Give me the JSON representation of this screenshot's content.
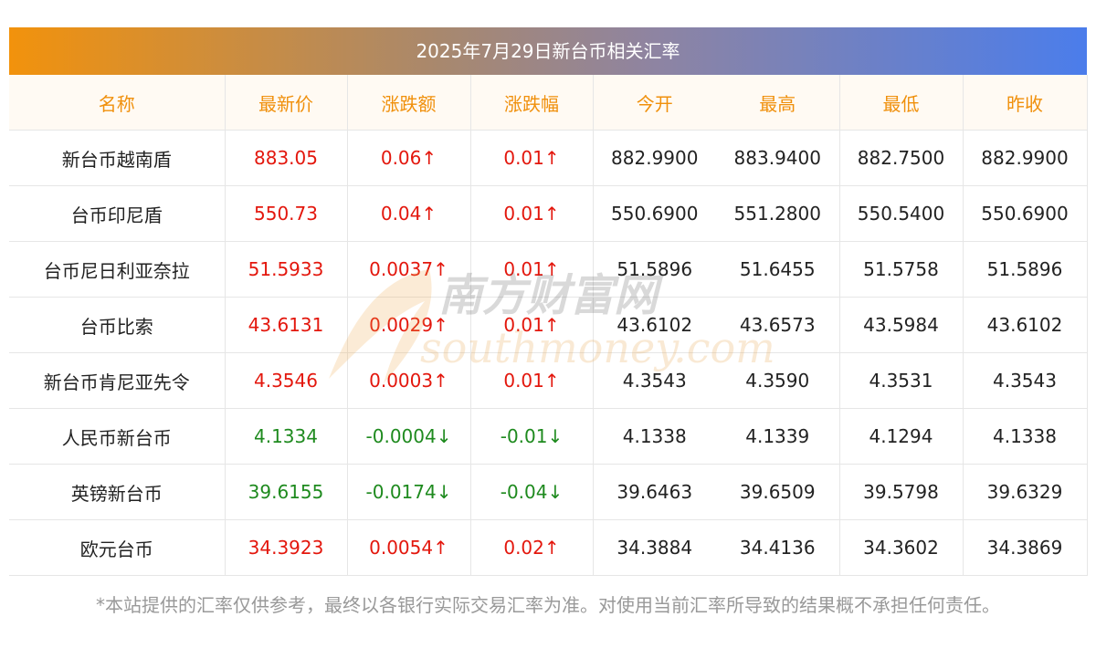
{
  "title": "2025年7月29日新台币相关汇率",
  "headers": [
    "名称",
    "最新价",
    "涨跌额",
    "涨跌幅",
    "今开",
    "最高",
    "最低",
    "昨收"
  ],
  "rows": [
    {
      "name": "新台币越南盾",
      "latest": "883.05",
      "change": "0.06↑",
      "change_pct": "0.01↑",
      "open": "882.9900",
      "high": "883.9400",
      "low": "882.7500",
      "prev_close": "882.9900",
      "direction": "up"
    },
    {
      "name": "台币印尼盾",
      "latest": "550.73",
      "change": "0.04↑",
      "change_pct": "0.01↑",
      "open": "550.6900",
      "high": "551.2800",
      "low": "550.5400",
      "prev_close": "550.6900",
      "direction": "up"
    },
    {
      "name": "台币尼日利亚奈拉",
      "latest": "51.5933",
      "change": "0.0037↑",
      "change_pct": "0.01↑",
      "open": "51.5896",
      "high": "51.6455",
      "low": "51.5758",
      "prev_close": "51.5896",
      "direction": "up"
    },
    {
      "name": "台币比索",
      "latest": "43.6131",
      "change": "0.0029↑",
      "change_pct": "0.01↑",
      "open": "43.6102",
      "high": "43.6573",
      "low": "43.5984",
      "prev_close": "43.6102",
      "direction": "up"
    },
    {
      "name": "新台币肯尼亚先令",
      "latest": "4.3546",
      "change": "0.0003↑",
      "change_pct": "0.01↑",
      "open": "4.3543",
      "high": "4.3590",
      "low": "4.3531",
      "prev_close": "4.3543",
      "direction": "up"
    },
    {
      "name": "人民币新台币",
      "latest": "4.1334",
      "change": "-0.0004↓",
      "change_pct": "-0.01↓",
      "open": "4.1338",
      "high": "4.1339",
      "low": "4.1294",
      "prev_close": "4.1338",
      "direction": "down"
    },
    {
      "name": "英镑新台币",
      "latest": "39.6155",
      "change": "-0.0174↓",
      "change_pct": "-0.04↓",
      "open": "39.6463",
      "high": "39.6509",
      "low": "39.5798",
      "prev_close": "39.6329",
      "direction": "down"
    },
    {
      "name": "欧元台币",
      "latest": "34.3923",
      "change": "0.0054↑",
      "change_pct": "0.02↑",
      "open": "34.3884",
      "high": "34.4136",
      "low": "34.3602",
      "prev_close": "34.3869",
      "direction": "up"
    }
  ],
  "watermark": {
    "cn": "南方财富网",
    "en": "southmoney.com"
  },
  "disclaimer": "*本站提供的汇率仅供参考，最终以各银行实际交易汇率为准。对使用当前汇率所导致的结果概不承担任何责任。",
  "colors": {
    "up": "#e3170d",
    "down": "#1e8a1e",
    "header_text": "#f0900c",
    "header_bg": "#fffaf3",
    "title_left": "#f2920c",
    "title_right": "#4b7deb"
  }
}
